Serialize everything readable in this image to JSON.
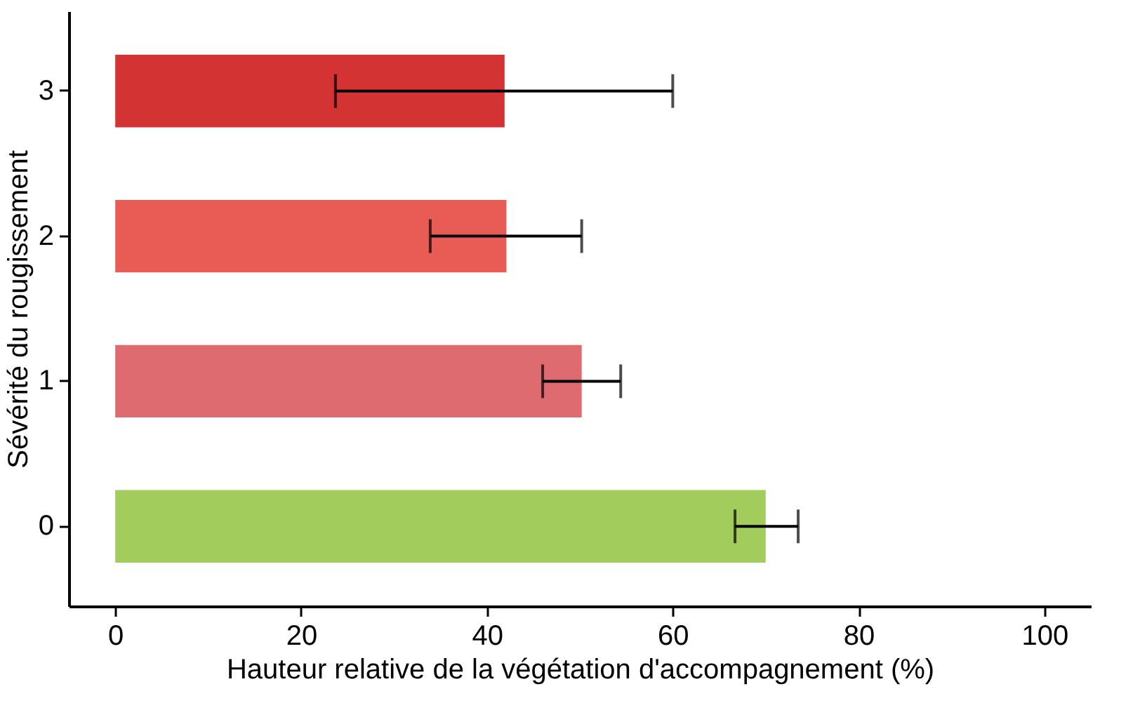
{
  "chart_data": {
    "type": "bar",
    "orientation": "horizontal",
    "xlabel": "Hauteur relative de la végétation d'accompagnement (%)",
    "ylabel": "Sévérité du rougissement",
    "categories": [
      "3",
      "2",
      "1",
      "0"
    ],
    "values": [
      41.9,
      42.1,
      50.2,
      70.0
    ],
    "colors": [
      "#d33333",
      "#e95c55",
      "#dd6b70",
      "#a2cc5c"
    ],
    "errors": [
      [
        23.7,
        60.0
      ],
      [
        33.9,
        50.2
      ],
      [
        46.0,
        54.4
      ],
      [
        66.7,
        73.5
      ]
    ],
    "xlim": [
      -5,
      105
    ],
    "xticks": [
      0,
      20,
      40,
      60,
      80,
      100
    ],
    "grid": false
  }
}
